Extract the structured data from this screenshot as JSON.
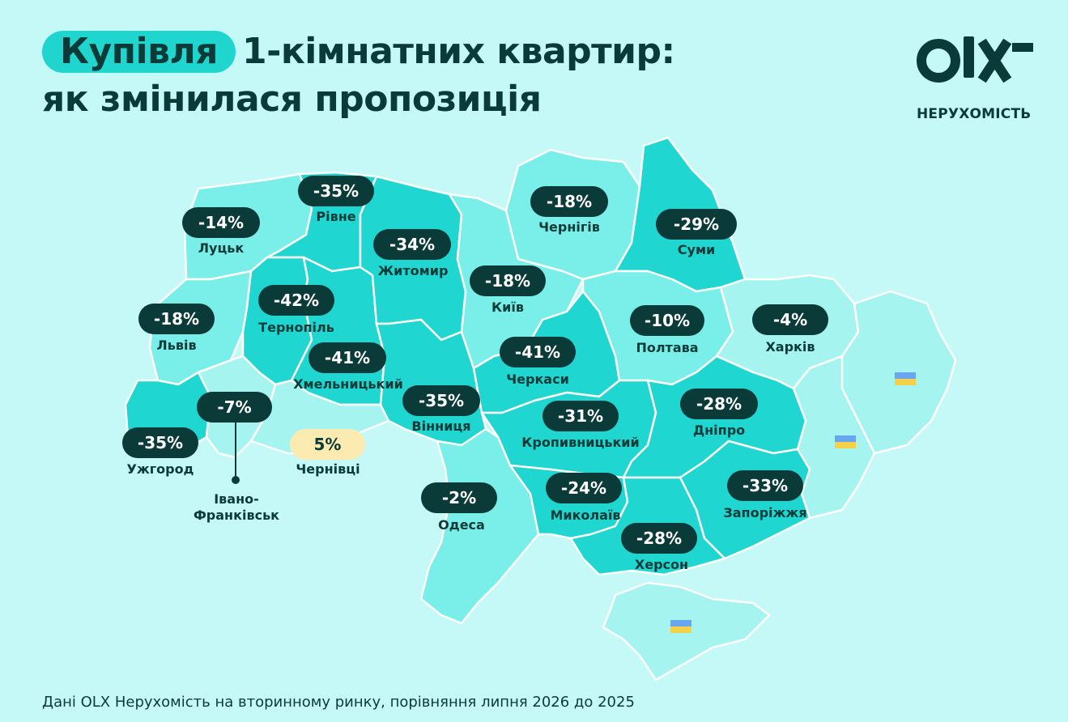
{
  "header": {
    "title_highlight": "Купівля",
    "title_rest": "1-кімнатних квартир:",
    "title_line2": "як змінилася пропозиція"
  },
  "logo": {
    "subtitle": "НЕРУХОМІСТЬ"
  },
  "colors": {
    "background": "#c4f9f7",
    "region_dark": "#1fd6d0",
    "region_medium": "#7aeee8",
    "region_light": "#a5f4f0",
    "badge_negative": "#0b3b38",
    "badge_positive": "#fcebb0",
    "text": "#0b3b38"
  },
  "regions": [
    {
      "city": "Луцьк",
      "change": "-14%"
    },
    {
      "city": "Рівне",
      "change": "-35%"
    },
    {
      "city": "Житомир",
      "change": "-34%"
    },
    {
      "city": "Чернігів",
      "change": "-18%"
    },
    {
      "city": "Суми",
      "change": "-29%"
    },
    {
      "city": "Київ",
      "change": "-18%"
    },
    {
      "city": "Львів",
      "change": "-18%"
    },
    {
      "city": "Тернопіль",
      "change": "-42%"
    },
    {
      "city": "Хмельницький",
      "change": "-41%"
    },
    {
      "city": "Полтава",
      "change": "-10%"
    },
    {
      "city": "Харків",
      "change": "-4%"
    },
    {
      "city": "Черкаси",
      "change": "-41%"
    },
    {
      "city": "Вінниця",
      "change": "-35%"
    },
    {
      "city": "Івано-Франківськ",
      "change": "-7%"
    },
    {
      "city": "Дніпро",
      "change": "-28%"
    },
    {
      "city": "Кропивницький",
      "change": "-31%"
    },
    {
      "city": "Ужгород",
      "change": "-35%"
    },
    {
      "city": "Чернівці",
      "change": "5%"
    },
    {
      "city": "Одеса",
      "change": "-2%"
    },
    {
      "city": "Миколаїв",
      "change": "-24%"
    },
    {
      "city": "Запоріжжя",
      "change": "-33%"
    },
    {
      "city": "Херсон",
      "change": "-28%"
    }
  ],
  "ivano_frankivsk_label": [
    "Івано-",
    "Франківськ"
  ],
  "footnote": "Дані OLX Нерухомість на вторинному ринку, порівняння липня 2026 до 2025"
}
